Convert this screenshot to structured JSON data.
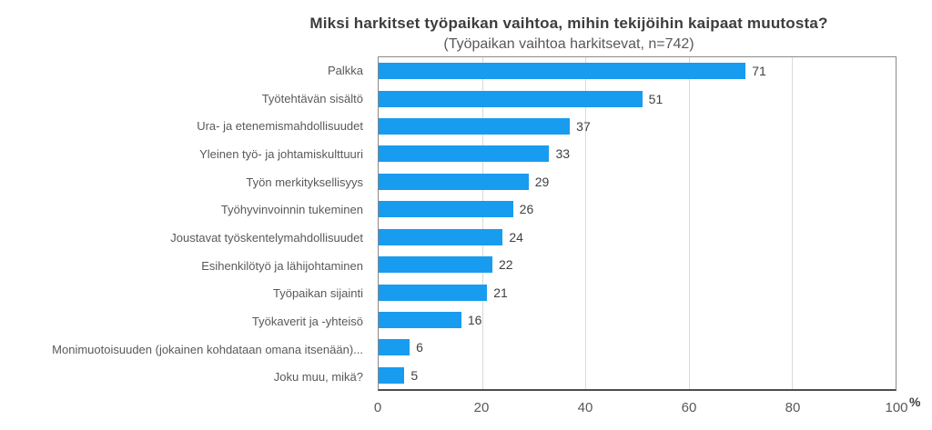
{
  "chart_data": {
    "type": "bar",
    "orientation": "horizontal",
    "title": "Miksi harkitset työpaikan vaihtoa, mihin tekijöihin kaipaat muutosta?",
    "subtitle": "(Työpaikan vaihtoa harkitsevat, n=742)",
    "categories": [
      "Palkka",
      "Työtehtävän sisältö",
      "Ura- ja etenemismahdollisuudet",
      "Yleinen työ- ja johtamiskulttuuri",
      "Työn merkityksellisyys",
      "Työhyvinvoinnin tukeminen",
      "Joustavat työskentelymahdollisuudet",
      "Esihenkilötyö ja lähijohtaminen",
      "Työpaikan sijainti",
      "Työkaverit ja -yhteisö",
      "Monimuotoisuuden (jokainen kohdataan omana itsenään)...",
      "Joku muu, mikä?"
    ],
    "values": [
      71,
      51,
      37,
      33,
      29,
      26,
      24,
      22,
      21,
      16,
      6,
      5
    ],
    "xlabel": "",
    "ylabel": "",
    "xlim": [
      0,
      100
    ],
    "x_ticks": [
      0,
      20,
      40,
      60,
      80,
      100
    ],
    "x_unit": "%",
    "bar_color": "#189cf0",
    "grid": true,
    "gridline_ticks": [
      20,
      40,
      60,
      80
    ],
    "legend": false
  }
}
